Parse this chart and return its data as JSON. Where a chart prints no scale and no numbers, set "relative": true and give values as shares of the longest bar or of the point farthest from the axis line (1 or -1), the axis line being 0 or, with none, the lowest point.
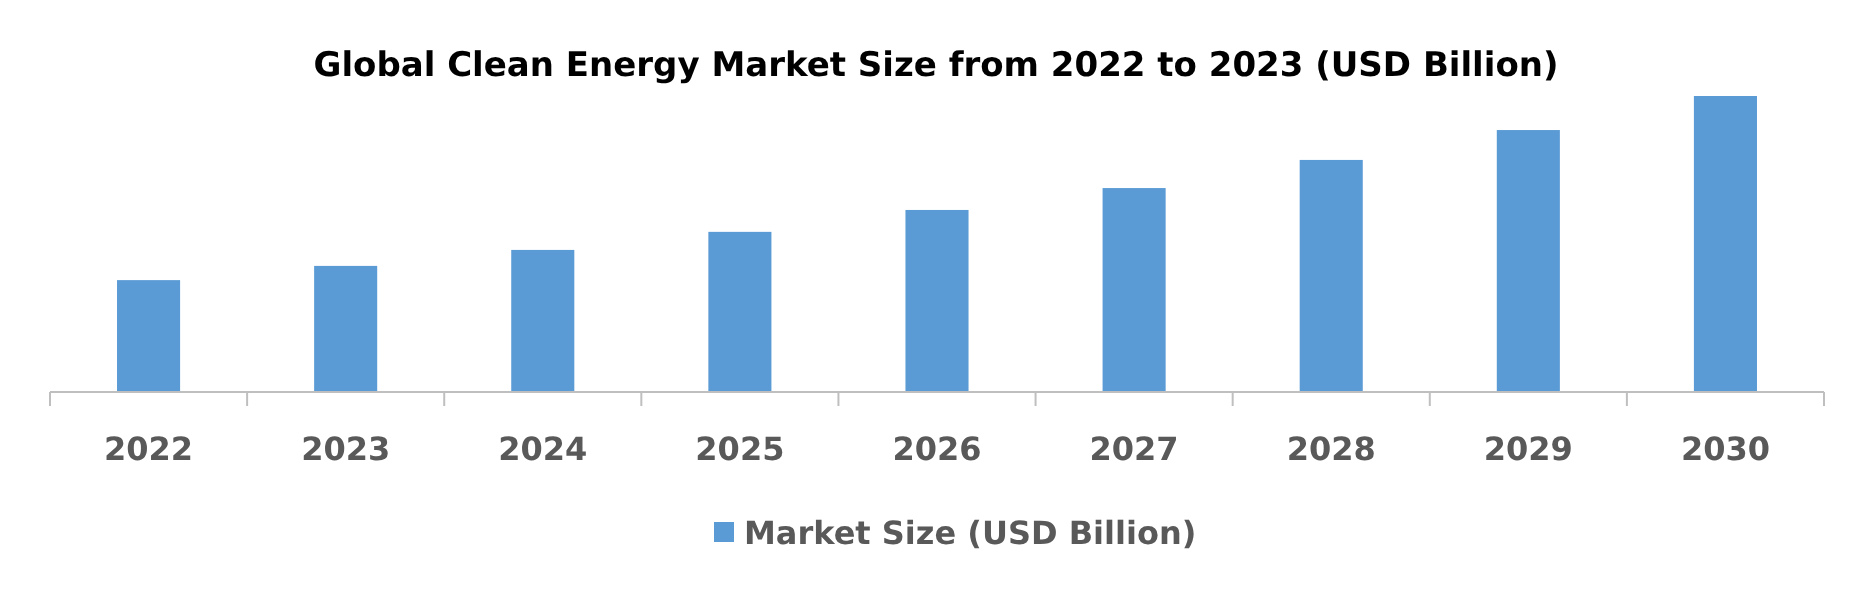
{
  "chart_data": {
    "type": "bar",
    "title": "Global Clean Energy Market Size from 2022 to 2023 (USD Billion)",
    "categories": [
      "2022",
      "2023",
      "2024",
      "2025",
      "2026",
      "2027",
      "2028",
      "2029",
      "2030"
    ],
    "relative": true,
    "series": [
      {
        "name": "Market Size (USD Billion)",
        "color": "#5b9bd5",
        "values": [
          0.378,
          0.426,
          0.48,
          0.541,
          0.615,
          0.689,
          0.784,
          0.885,
          1
        ]
      }
    ],
    "legend": "bottom"
  }
}
